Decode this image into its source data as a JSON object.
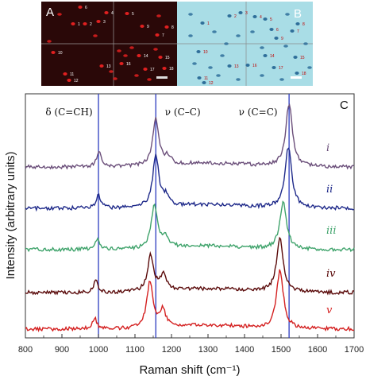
{
  "panels": {
    "a": {
      "letter": "A",
      "background": "#2a0808",
      "cell_color": "#e02020",
      "cell_numbers": [
        "1",
        "2",
        "3",
        "4",
        "5",
        "6",
        "7",
        "8",
        "9",
        "10",
        "11",
        "12",
        "13",
        "14",
        "15",
        "16",
        "17",
        "18"
      ]
    },
    "b": {
      "letter": "B",
      "background": "#a9dde6",
      "cell_color": "#2f6f9a",
      "cell_numbers": [
        "1",
        "2",
        "3",
        "4",
        "5",
        "6",
        "7",
        "8",
        "9",
        "10",
        "11",
        "12",
        "13",
        "14",
        "15",
        "16",
        "17",
        "18"
      ]
    }
  },
  "chart_data": {
    "type": "line",
    "panel_letter": "C",
    "xlabel": "Raman shift (cm⁻¹)",
    "ylabel": "Intensity (arbitrary units)",
    "xlim": [
      800,
      1700
    ],
    "xticks": [
      "800",
      "900",
      "1000",
      "1100",
      "1200",
      "1300",
      "1400",
      "1500",
      "1600",
      "1700"
    ],
    "reference_lines": [
      {
        "x": 1000,
        "label": "δ (C=CH)"
      },
      {
        "x": 1157,
        "label": "ν (C–C)"
      },
      {
        "x": 1522,
        "label": "ν (C=C)"
      }
    ],
    "series": [
      {
        "name": "i",
        "color": "#6b4f7a",
        "peaks": [
          [
            1002,
            0.55
          ],
          [
            1157,
            1.55
          ],
          [
            1190,
            0.25
          ],
          [
            1522,
            2.1
          ]
        ]
      },
      {
        "name": "ii",
        "color": "#1f2a8a",
        "peaks": [
          [
            1000,
            0.45
          ],
          [
            1157,
            1.7
          ],
          [
            1185,
            0.3
          ],
          [
            1520,
            2.0
          ]
        ]
      },
      {
        "name": "iii",
        "color": "#3fa36b",
        "peaks": [
          [
            998,
            0.35
          ],
          [
            1153,
            1.45
          ],
          [
            1183,
            0.35
          ],
          [
            1506,
            1.55
          ]
        ]
      },
      {
        "name": "iv",
        "color": "#5a0a0a",
        "peaks": [
          [
            993,
            0.4
          ],
          [
            1143,
            1.2
          ],
          [
            1178,
            0.5
          ],
          [
            1497,
            1.75
          ]
        ]
      },
      {
        "name": "v",
        "color": "#d42020",
        "peaks": [
          [
            990,
            0.35
          ],
          [
            1141,
            1.55
          ],
          [
            1176,
            0.55
          ],
          [
            1497,
            1.95
          ]
        ]
      }
    ]
  }
}
